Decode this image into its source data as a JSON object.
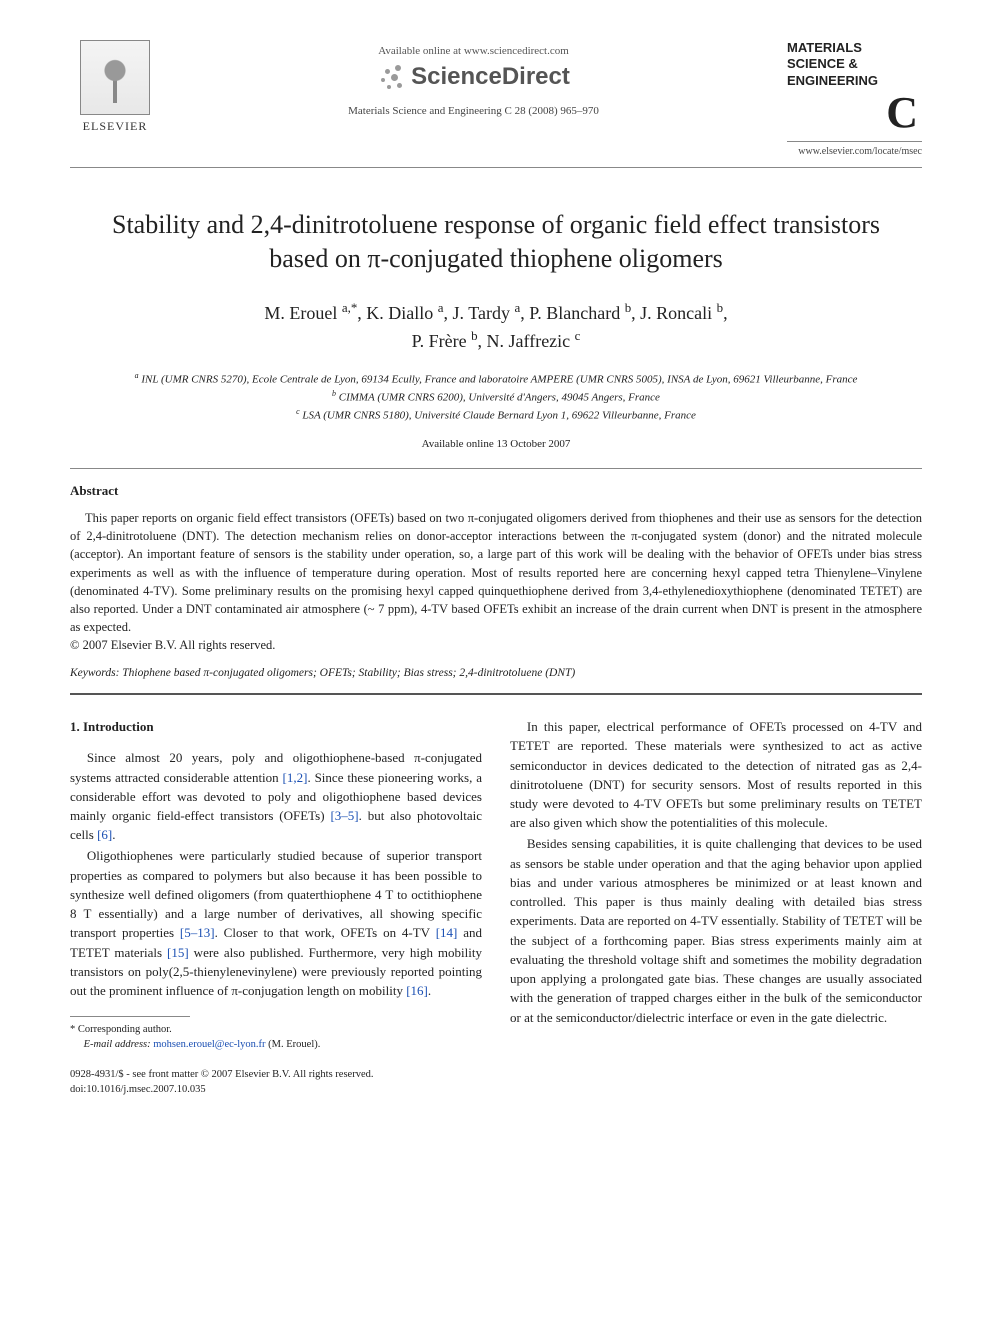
{
  "header": {
    "publisher_name": "ELSEVIER",
    "available_online": "Available online at www.sciencedirect.com",
    "sciencedirect": "ScienceDirect",
    "journal_ref": "Materials Science and Engineering C 28 (2008) 965–970",
    "journal_logo_line1": "MATERIALS",
    "journal_logo_line2": "SCIENCE &",
    "journal_logo_line3": "ENGINEERING",
    "journal_logo_letter": "C",
    "journal_url": "www.elsevier.com/locate/msec"
  },
  "title": "Stability and 2,4-dinitrotoluene response of organic field effect transistors based on π-conjugated thiophene oligomers",
  "authors_html": "M. Erouel <sup>a,*</sup>, K. Diallo <sup>a</sup>, J. Tardy <sup>a</sup>, P. Blanchard <sup>b</sup>, J. Roncali <sup>b</sup>,<br>P. Frère <sup>b</sup>, N. Jaffrezic <sup>c</sup>",
  "affiliations": {
    "a": "INL (UMR CNRS 5270), Ecole Centrale de Lyon, 69134 Ecully, France and laboratoire AMPERE (UMR CNRS 5005), INSA de Lyon, 69621 Villeurbanne, France",
    "b": "CIMMA (UMR CNRS 6200), Université d'Angers, 49045 Angers, France",
    "c": "LSA (UMR CNRS 5180), Université Claude Bernard Lyon 1, 69622 Villeurbanne, France"
  },
  "available_date": "Available online 13 October 2007",
  "abstract": {
    "heading": "Abstract",
    "body": "This paper reports on organic field effect transistors (OFETs) based on two π-conjugated oligomers derived from thiophenes and their use as sensors for the detection of 2,4-dinitrotoluene (DNT). The detection mechanism relies on donor-acceptor interactions between the π-conjugated system (donor) and the nitrated molecule (acceptor). An important feature of sensors is the stability under operation, so, a large part of this work will be dealing with the behavior of OFETs under bias stress experiments as well as with the influence of temperature during operation. Most of results reported here are concerning hexyl capped tetra Thienylene–Vinylene (denominated 4-TV). Some preliminary results on the promising hexyl capped quinquethiophene derived from 3,4-ethylenedioxythiophene (denominated TETET) are also reported. Under a DNT contaminated air atmosphere (~ 7 ppm), 4-TV based OFETs exhibit an increase of the drain current when DNT is present in the atmosphere as expected.",
    "copyright": "© 2007 Elsevier B.V. All rights reserved."
  },
  "keywords_label": "Keywords:",
  "keywords": "Thiophene based π-conjugated oligomers; OFETs; Stability; Bias stress; 2,4-dinitrotoluene (DNT)",
  "intro": {
    "heading": "1. Introduction",
    "left_paras": [
      "Since almost 20 years, poly and oligothiophene-based π-conjugated systems attracted considerable attention <span class=\"cite\">[1,2]</span>. Since these pioneering works, a considerable effort was devoted to poly and oligothiophene based devices mainly organic field-effect transistors (OFETs) <span class=\"cite\">[3–5]</span>. but also photovoltaic cells <span class=\"cite\">[6]</span>.",
      "Oligothiophenes were particularly studied because of superior transport properties as compared to polymers but also because it has been possible to synthesize well defined oligomers (from quaterthiophene 4 T to octithiophene 8 T essentially) and a large number of derivatives, all showing specific transport properties <span class=\"cite\">[5–13]</span>. Closer to that work, OFETs on 4-TV <span class=\"cite\">[14]</span> and TETET materials <span class=\"cite\">[15]</span> were also published. Furthermore, very high mobility transistors on poly(2,5-thienylenevinylene) were previously reported pointing out the prominent influence of π-conjugation length on mobility <span class=\"cite\">[16]</span>."
    ],
    "right_paras": [
      "In this paper, electrical performance of OFETs processed on 4-TV and TETET are reported. These materials were synthesized to act as active semiconductor in devices dedicated to the detection of nitrated gas as 2,4-dinitrotoluene (DNT) for security sensors. Most of results reported in this study were devoted to 4-TV OFETs but some preliminary results on TETET are also given which show the potentialities of this molecule.",
      "Besides sensing capabilities, it is quite challenging that devices to be used as sensors be stable under operation and that the aging behavior upon applied bias and under various atmospheres be minimized or at least known and controlled. This paper is thus mainly dealing with detailed bias stress experiments. Data are reported on 4-TV essentially. Stability of TETET will be the subject of a forthcoming paper. Bias stress experiments mainly aim at evaluating the threshold voltage shift and sometimes the mobility degradation upon applying a prolongated gate bias. These changes are usually associated with the generation of trapped charges either in the bulk of the semiconductor or at the semiconductor/dielectric interface or even in the gate dielectric."
    ]
  },
  "footnote": {
    "corresponding": "* Corresponding author.",
    "email_label": "E-mail address:",
    "email": "mohsen.erouel@ec-lyon.fr",
    "email_who": "(M. Erouel)."
  },
  "footer": {
    "issn_line": "0928-4931/$ - see front matter © 2007 Elsevier B.V. All rights reserved.",
    "doi_line": "doi:10.1016/j.msec.2007.10.035"
  },
  "colors": {
    "text": "#222222",
    "link": "#1a4fb3",
    "rule": "#888888",
    "sd_gray": "#555555"
  }
}
